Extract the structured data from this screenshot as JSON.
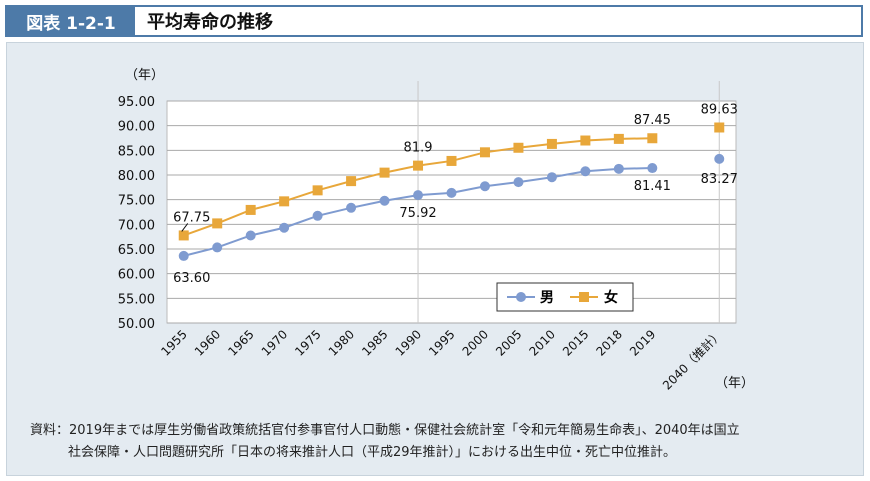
{
  "header": {
    "figure_label": "図表 1-2-1",
    "title": "平均寿命の推移"
  },
  "source_note": [
    "資料：2019年までは厚生労働省政策統括官付参事官付人口動態・保健社会統計室「令和元年簡易生命表」、2040年は国立",
    "社会保障・人口問題研究所「日本の将来推計人口（平成29年推計）」における出生中位・死亡中位推計。"
  ],
  "chart_data": {
    "type": "line",
    "ylabel": "（年）",
    "xlabel": "（年）",
    "ylim": [
      50,
      95
    ],
    "yticks": [
      "50.00",
      "55.00",
      "60.00",
      "65.00",
      "70.00",
      "75.00",
      "80.00",
      "85.00",
      "90.00",
      "95.00"
    ],
    "categories": [
      "1955",
      "1960",
      "1965",
      "1970",
      "1975",
      "1980",
      "1985",
      "1990",
      "1995",
      "2000",
      "2005",
      "2010",
      "2015",
      "2018",
      "2019",
      "",
      "2040（推計）"
    ],
    "grid": "horizontal",
    "legend": "bottom-right",
    "series": [
      {
        "name": "男",
        "color": "#7f9bd0",
        "marker": "circle",
        "values": [
          63.6,
          65.32,
          67.74,
          69.31,
          71.73,
          73.35,
          74.78,
          75.92,
          76.38,
          77.72,
          78.56,
          79.55,
          80.75,
          81.25,
          81.41,
          null,
          83.27
        ],
        "labels": {
          "0": "63.60",
          "7": "75.92",
          "14": "81.41",
          "16": "83.27"
        }
      },
      {
        "name": "女",
        "color": "#e8a73a",
        "marker": "square",
        "values": [
          67.75,
          70.19,
          72.92,
          74.66,
          76.89,
          78.76,
          80.48,
          81.9,
          82.85,
          84.6,
          85.52,
          86.3,
          86.99,
          87.32,
          87.45,
          null,
          89.63
        ],
        "labels": {
          "0": "67.75",
          "7": "81.9",
          "14": "87.45",
          "16": "89.63"
        }
      }
    ]
  }
}
